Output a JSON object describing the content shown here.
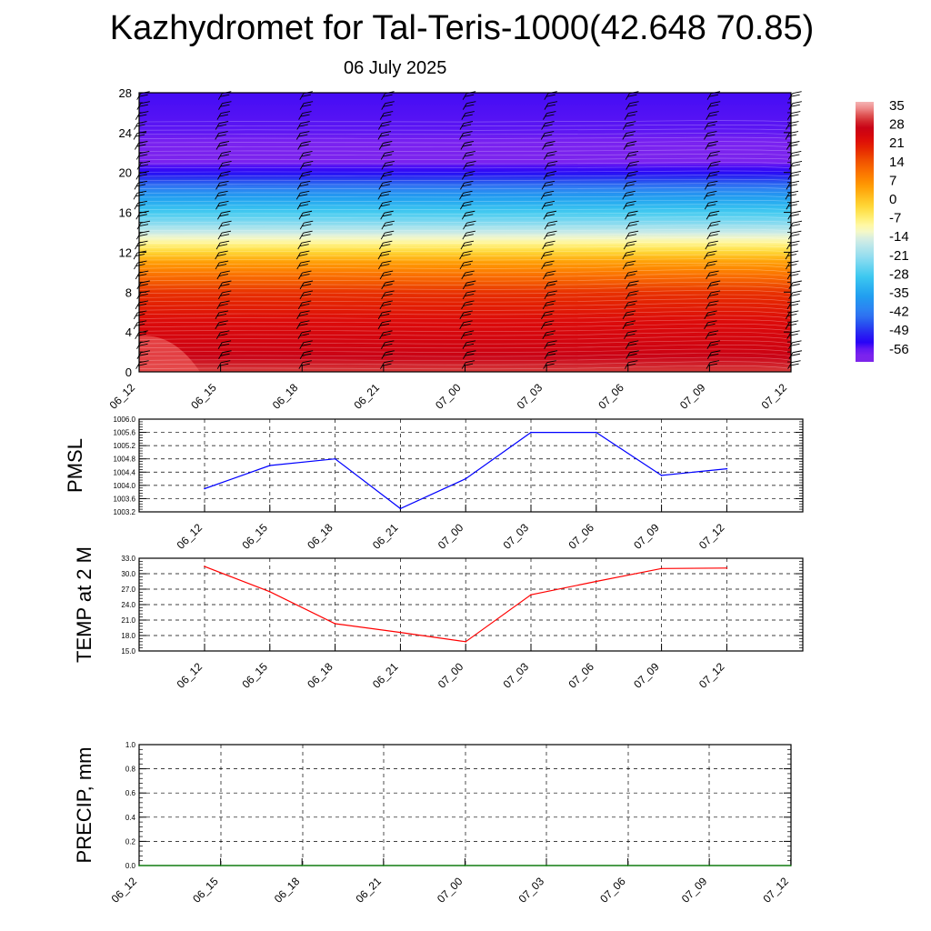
{
  "title": "Kazhydromet for Tal-Teris-1000(42.648 70.85)",
  "subtitle": "06 July 2025",
  "chart_data": [
    {
      "type": "heatmap",
      "description_of_field": "temperature cross-section with wind barbs",
      "x_ticks": [
        "06_12",
        "06_15",
        "06_18",
        "06_21",
        "07_00",
        "07_03",
        "07_06",
        "07_09",
        "07_12"
      ],
      "y_ticks": [
        "0",
        "4",
        "8",
        "12",
        "16",
        "20",
        "24",
        "28"
      ],
      "ylim": [
        0,
        28
      ],
      "colorbar_labels": [
        "35",
        "28",
        "21",
        "14",
        "7",
        "0",
        "-7",
        "-14",
        "-21",
        "-28",
        "-35",
        "-42",
        "-49",
        "-56"
      ],
      "colorbar_range": [
        -60,
        38
      ],
      "level_temps": [
        {
          "h": 0,
          "t": 32
        },
        {
          "h": 2,
          "t": 27
        },
        {
          "h": 5,
          "t": 24
        },
        {
          "h": 8,
          "t": 19
        },
        {
          "h": 11,
          "t": 6
        },
        {
          "h": 13,
          "t": -8
        },
        {
          "h": 15,
          "t": -22
        },
        {
          "h": 18,
          "t": -38
        },
        {
          "h": 20,
          "t": -52
        },
        {
          "h": 21.5,
          "t": -58
        },
        {
          "h": 24,
          "t": -55
        },
        {
          "h": 28,
          "t": -54
        }
      ]
    },
    {
      "type": "line",
      "ylabel": "PMSL",
      "categories": [
        "06_12",
        "06_15",
        "06_18",
        "06_21",
        "07_00",
        "07_03",
        "07_06",
        "07_09",
        "07_12"
      ],
      "values": [
        1003.9,
        1004.6,
        1004.8,
        1003.3,
        1004.2,
        1005.6,
        1005.6,
        1004.3,
        1004.5
      ],
      "color": "#0000ff",
      "ylim": [
        1003.2,
        1006.0
      ],
      "y_ticks": [
        "1003.2",
        "1003.6",
        "1004.0",
        "1004.4",
        "1004.8",
        "1005.2",
        "1005.6",
        "1006.0"
      ],
      "grid": true
    },
    {
      "type": "line",
      "ylabel": "TEMP at 2 M",
      "categories": [
        "06_12",
        "06_15",
        "06_18",
        "06_21",
        "07_00",
        "07_03",
        "07_06",
        "07_09",
        "07_12"
      ],
      "values": [
        31.4,
        26.5,
        20.3,
        18.6,
        16.8,
        25.9,
        28.5,
        31.0,
        31.1
      ],
      "color": "#ff0000",
      "ylim": [
        15.0,
        33.0
      ],
      "y_ticks": [
        "15.0",
        "18.0",
        "21.0",
        "24.0",
        "27.0",
        "30.0",
        "33.0"
      ],
      "grid": true
    },
    {
      "type": "line",
      "ylabel": "PRECIP, mm",
      "categories": [
        "06_12",
        "06_15",
        "06_18",
        "06_21",
        "07_00",
        "07_03",
        "07_06",
        "07_09",
        "07_12"
      ],
      "values": [
        0,
        0,
        0,
        0,
        0,
        0,
        0,
        0,
        0
      ],
      "color": "#008000",
      "ylim": [
        0.0,
        1.0
      ],
      "y_ticks": [
        "0.0",
        "0.2",
        "0.4",
        "0.6",
        "0.8",
        "1.0"
      ],
      "grid": true
    }
  ]
}
